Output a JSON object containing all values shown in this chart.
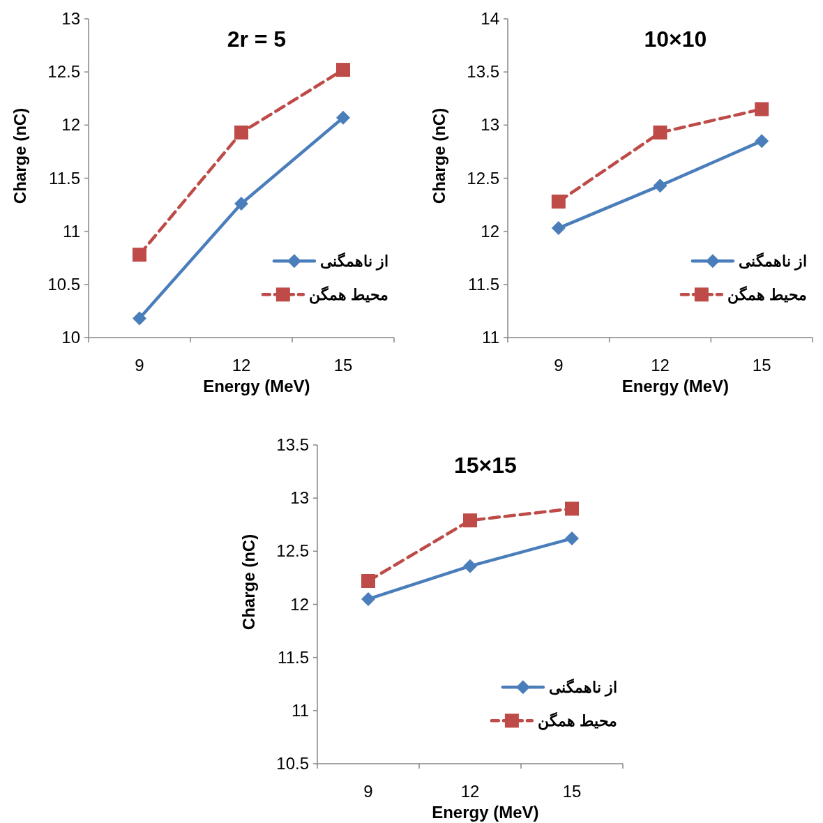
{
  "chart_data": [
    {
      "type": "line",
      "title": "2r = 5",
      "xlabel": "Energy (MeV)",
      "ylabel": "Charge (nC)",
      "categories": [
        "9",
        "12",
        "15"
      ],
      "ylim": [
        10,
        13
      ],
      "yticks": [
        10,
        10.5,
        11,
        11.5,
        12,
        12.5,
        13
      ],
      "grid": false,
      "legend": "right",
      "series": [
        {
          "name": "از ناهمگنی",
          "color": "#4a7ebb",
          "marker": "diamond",
          "line_style": "solid",
          "values": [
            10.18,
            11.26,
            12.07
          ]
        },
        {
          "name": "محیط همگن",
          "color": "#be4b48",
          "marker": "square",
          "line_style": "dashed",
          "values": [
            10.78,
            11.93,
            12.52
          ]
        }
      ]
    },
    {
      "type": "line",
      "title": "10×10",
      "xlabel": "Energy (MeV)",
      "ylabel": "Charge (nC)",
      "categories": [
        "9",
        "12",
        "15"
      ],
      "ylim": [
        11,
        14
      ],
      "yticks": [
        11,
        11.5,
        12,
        12.5,
        13,
        13.5,
        14
      ],
      "grid": false,
      "legend": "right",
      "series": [
        {
          "name": "از ناهمگنی",
          "color": "#4a7ebb",
          "marker": "diamond",
          "line_style": "solid",
          "values": [
            12.03,
            12.43,
            12.85
          ]
        },
        {
          "name": "محیط همگن",
          "color": "#be4b48",
          "marker": "square",
          "line_style": "dashed",
          "values": [
            12.28,
            12.93,
            13.15
          ]
        }
      ]
    },
    {
      "type": "line",
      "title": "15×15",
      "xlabel": "Energy (MeV)",
      "ylabel": "Charge (nC)",
      "categories": [
        "9",
        "12",
        "15"
      ],
      "ylim": [
        10.5,
        13.5
      ],
      "yticks": [
        10.5,
        11,
        11.5,
        12,
        12.5,
        13,
        13.5
      ],
      "grid": false,
      "legend": "right",
      "series": [
        {
          "name": "از ناهمگنی",
          "color": "#4a7ebb",
          "marker": "diamond",
          "line_style": "solid",
          "values": [
            12.05,
            12.36,
            12.62
          ]
        },
        {
          "name": "محیط همگن",
          "color": "#be4b48",
          "marker": "square",
          "line_style": "dashed",
          "values": [
            12.22,
            12.79,
            12.9
          ]
        }
      ]
    }
  ]
}
